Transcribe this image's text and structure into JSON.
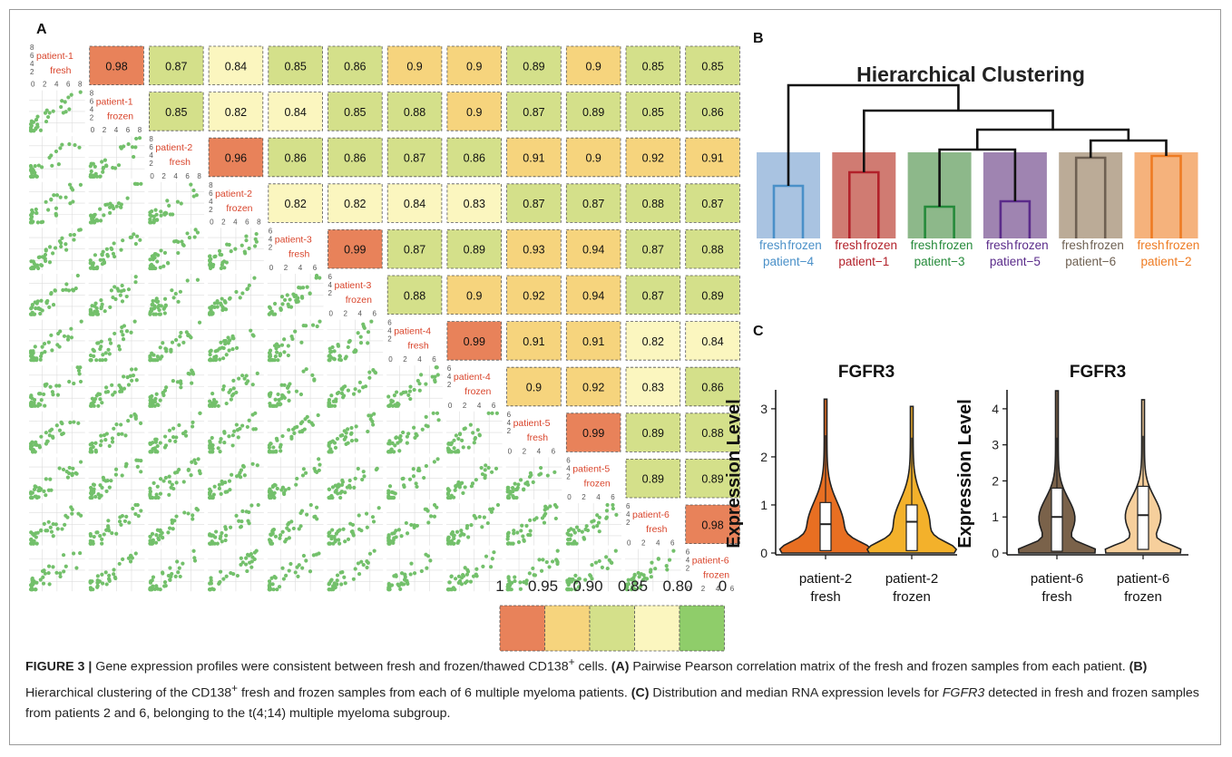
{
  "panels": {
    "a": "A",
    "b": "B",
    "c": "C"
  },
  "matrix": {
    "labels": [
      [
        "patient-1",
        "fresh"
      ],
      [
        "patient-1",
        "frozen"
      ],
      [
        "patient-2",
        "fresh"
      ],
      [
        "patient-2",
        "frozen"
      ],
      [
        "patient-3",
        "fresh"
      ],
      [
        "patient-3",
        "frozen"
      ],
      [
        "patient-4",
        "fresh"
      ],
      [
        "patient-4",
        "frozen"
      ],
      [
        "patient-5",
        "fresh"
      ],
      [
        "patient-5",
        "frozen"
      ],
      [
        "patient-6",
        "fresh"
      ],
      [
        "patient-6",
        "frozen"
      ]
    ],
    "corr_rows": [
      [
        "0.98",
        "0.87",
        "0.84",
        "0.85",
        "0.86",
        "0.9",
        "0.9",
        "0.89",
        "0.9",
        "0.85",
        "0.85"
      ],
      [
        "0.85",
        "0.82",
        "0.84",
        "0.85",
        "0.88",
        "0.9",
        "0.87",
        "0.89",
        "0.85",
        "0.86"
      ],
      [
        "0.96",
        "0.86",
        "0.86",
        "0.87",
        "0.86",
        "0.91",
        "0.9",
        "0.92",
        "0.91"
      ],
      [
        "0.82",
        "0.82",
        "0.84",
        "0.83",
        "0.87",
        "0.87",
        "0.88",
        "0.87"
      ],
      [
        "0.99",
        "0.87",
        "0.89",
        "0.93",
        "0.94",
        "0.87",
        "0.88"
      ],
      [
        "0.88",
        "0.9",
        "0.92",
        "0.94",
        "0.87",
        "0.89"
      ],
      [
        "0.99",
        "0.91",
        "0.91",
        "0.82",
        "0.84"
      ],
      [
        "0.9",
        "0.92",
        "0.83",
        "0.86"
      ],
      [
        "0.99",
        "0.89",
        "0.88"
      ],
      [
        "0.89",
        "0.89"
      ],
      [
        "0.98"
      ]
    ],
    "diag_ticks": {
      "x8": [
        "0",
        "2",
        "4",
        "6",
        "8"
      ],
      "x6": [
        "0",
        "2",
        "4",
        "6"
      ],
      "y8": [
        "8",
        "6",
        "4",
        "2"
      ],
      "y6": [
        "6",
        "4",
        "2"
      ],
      "max_by_sample": [
        8,
        8,
        8,
        8,
        6,
        6,
        6,
        6,
        6,
        6,
        6,
        6
      ]
    },
    "legend": {
      "labels": [
        "1",
        "0.95",
        "0.90",
        "0.85",
        "0.80",
        "0"
      ],
      "colors": [
        "#e8825a",
        "#f6d47d",
        "#d4e08a",
        "#fbf6bf",
        "#8fcd6a"
      ]
    },
    "colors": {
      "very_high": "#e8825a",
      "high": "#f6d47d",
      "mid": "#d4e08a",
      "low": "#fbf6bf",
      "scatter": "#73c06b",
      "diag_label": "#d9452c"
    }
  },
  "clustering": {
    "title": "Hierarchical Clustering",
    "leaves": [
      {
        "fresh": "fresh",
        "frozen": "frozen",
        "patient": "patient−4",
        "color": "#4a90c8",
        "bg": "#a9c3e1"
      },
      {
        "fresh": "fresh",
        "frozen": "frozen",
        "patient": "patient−1",
        "color": "#b2212a",
        "bg": "#d07b72"
      },
      {
        "fresh": "fresh",
        "frozen": "frozen",
        "patient": "patient−3",
        "color": "#258a3a",
        "bg": "#8db88a"
      },
      {
        "fresh": "fresh",
        "frozen": "frozen",
        "patient": "patient−5",
        "color": "#5a2b8a",
        "bg": "#9f84b1"
      },
      {
        "fresh": "fresh",
        "frozen": "frozen",
        "patient": "patient−6",
        "color": "#6e6052",
        "bg": "#bbab97"
      },
      {
        "fresh": "fresh",
        "frozen": "frozen",
        "patient": "patient−2",
        "color": "#ee7b22",
        "bg": "#f5b27c"
      }
    ]
  },
  "violins": {
    "ylabel": "Expression Level",
    "left": {
      "title": "FGFR3",
      "ymax": 3.3,
      "yticks": [
        "0",
        "1",
        "2",
        "3"
      ],
      "groups": [
        {
          "line1": "patient-2",
          "line2": "fresh",
          "color": "#e86f22",
          "median": 0.6,
          "q1": 0.05,
          "q3": 1.05,
          "max": 3.2
        },
        {
          "line1": "patient-2",
          "line2": "frozen",
          "color": "#f3b12b",
          "median": 0.65,
          "q1": 0.05,
          "q3": 1.0,
          "max": 3.05
        }
      ]
    },
    "right": {
      "title": "FGFR3",
      "ymax": 4.4,
      "yticks": [
        "0",
        "1",
        "2",
        "3",
        "4"
      ],
      "groups": [
        {
          "line1": "patient-6",
          "line2": "fresh",
          "color": "#7a624a",
          "median": 1.0,
          "q1": 0.05,
          "q3": 1.8,
          "max": 4.5
        },
        {
          "line1": "patient-6",
          "line2": "frozen",
          "color": "#f6cf9c",
          "median": 1.05,
          "q1": 0.1,
          "q3": 1.85,
          "max": 4.25
        }
      ]
    }
  },
  "caption": {
    "label": "FIGURE 3 |",
    "text1": " Gene expression profiles were consistent between fresh and frozen/thawed CD138",
    "sup1": "+",
    "text2": " cells. ",
    "a": "(A)",
    "text3": " Pairwise Pearson correlation matrix of the fresh and frozen samples from each patient. ",
    "b": "(B)",
    "text4": " Hierarchical clustering of the CD138",
    "sup2": "+",
    "text5": " fresh and frozen samples from each of 6 multiple myeloma patients. ",
    "c": "(C)",
    "text6": " Distribution and median RNA expression levels for ",
    "gene": "FGFR3",
    "text7": " detected in fresh and frozen samples from patients 2 and 6, belonging to the t(4;14) multiple myeloma subgroup."
  }
}
